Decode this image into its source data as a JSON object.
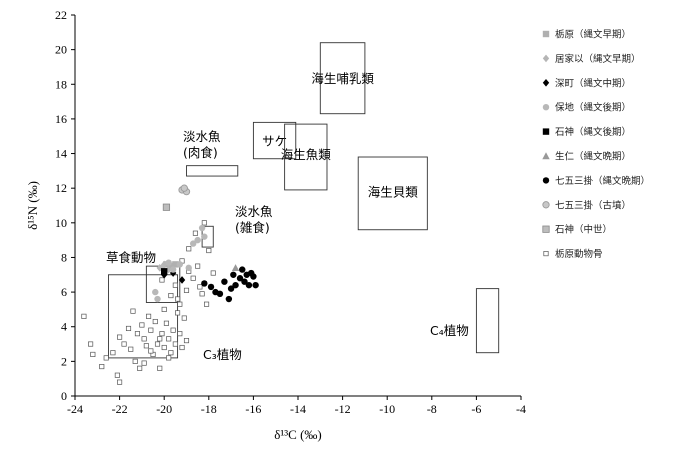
{
  "chart_data": {
    "type": "scatter",
    "xlabel": "δ¹³C (‰)",
    "ylabel": "δ¹⁵N (‰)",
    "xlim": [
      -24,
      -4
    ],
    "ylim": [
      0,
      22
    ],
    "xticks": [
      -24,
      -22,
      -20,
      -18,
      -16,
      -14,
      -12,
      -10,
      -8,
      -6,
      -4
    ],
    "yticks": [
      0,
      2,
      4,
      6,
      8,
      10,
      12,
      14,
      16,
      18,
      20,
      22
    ],
    "grid": false,
    "legend_position": "right",
    "regions": [
      {
        "label": "海生哺乳類",
        "x0": -13.0,
        "x1": -11.0,
        "y0": 16.3,
        "y1": 20.4
      },
      {
        "label": "サケ",
        "x0": -16.0,
        "x1": -14.1,
        "y0": 13.7,
        "y1": 15.8
      },
      {
        "label": "海生魚類",
        "x0": -14.6,
        "x1": -12.7,
        "y0": 11.9,
        "y1": 15.7
      },
      {
        "label": "海生貝類",
        "x0": -11.3,
        "x1": -8.2,
        "y0": 9.6,
        "y1": 13.8
      },
      {
        "label": "淡水魚\n(肉食)",
        "x0": -19.0,
        "x1": -16.7,
        "y0": 12.7,
        "y1": 13.3
      },
      {
        "label": "淡水魚\n(雑食)",
        "x0": -18.3,
        "x1": -17.8,
        "y0": 8.6,
        "y1": 9.8
      },
      {
        "label": "草食動物",
        "x0": -20.8,
        "x1": -19.3,
        "y0": 5.4,
        "y1": 7.5
      },
      {
        "label": "C₃植物",
        "x0": -22.5,
        "x1": -19.4,
        "y0": 2.2,
        "y1": 7.0
      },
      {
        "label": "C₄植物",
        "x0": -6.0,
        "x1": -5.0,
        "y0": 2.5,
        "y1": 6.2
      }
    ],
    "series": [
      {
        "name": "栃原（縄文早期）",
        "marker": "square",
        "color": "#b0b0b0",
        "points": [
          [
            -19.9,
            7.6
          ],
          [
            -19.7,
            7.5
          ],
          [
            -19.5,
            7.6
          ]
        ]
      },
      {
        "name": "居家以（縄文早期）",
        "marker": "diamond",
        "color": "#b5b5b5",
        "points": [
          [
            -20.2,
            7.4
          ],
          [
            -20.0,
            7.6
          ],
          [
            -19.8,
            7.3
          ]
        ]
      },
      {
        "name": "深町（縄文中期）",
        "marker": "diamond",
        "color": "#000000",
        "points": [
          [
            -20.0,
            7.0
          ],
          [
            -19.6,
            7.1
          ],
          [
            -19.2,
            6.7
          ]
        ]
      },
      {
        "name": "保地（縄文後期）",
        "marker": "circle",
        "color": "#b8b8b8",
        "points": [
          [
            -20.4,
            6.0
          ],
          [
            -20.3,
            5.6
          ],
          [
            -20.1,
            7.4
          ],
          [
            -20.0,
            7.2
          ],
          [
            -19.8,
            7.7
          ],
          [
            -19.6,
            7.3
          ],
          [
            -19.3,
            7.6
          ],
          [
            -18.9,
            7.4
          ],
          [
            -18.7,
            8.8
          ],
          [
            -18.5,
            9.0
          ],
          [
            -18.3,
            9.7
          ],
          [
            -18.2,
            9.2
          ]
        ]
      },
      {
        "name": "石神（縄文後期）",
        "marker": "square",
        "color": "#000000",
        "points": [
          [
            -20.0,
            7.2
          ]
        ]
      },
      {
        "name": "生仁（縄文晩期）",
        "marker": "triangle",
        "color": "#999999",
        "points": [
          [
            -16.8,
            7.4
          ]
        ]
      },
      {
        "name": "七五三掛（縄文晩期）",
        "marker": "circle",
        "color": "#000000",
        "points": [
          [
            -18.2,
            6.5
          ],
          [
            -17.9,
            6.3
          ],
          [
            -17.7,
            6.0
          ],
          [
            -17.5,
            5.9
          ],
          [
            -17.3,
            6.6
          ],
          [
            -17.1,
            5.6
          ],
          [
            -17.0,
            6.2
          ],
          [
            -16.9,
            7.0
          ],
          [
            -16.8,
            6.4
          ],
          [
            -16.6,
            6.8
          ],
          [
            -16.5,
            7.3
          ],
          [
            -16.4,
            6.6
          ],
          [
            -16.2,
            6.4
          ],
          [
            -16.0,
            6.9
          ],
          [
            -15.9,
            6.4
          ],
          [
            -16.3,
            7.0
          ],
          [
            -16.1,
            7.1
          ]
        ]
      },
      {
        "name": "七五三掛（古墳）",
        "marker": "circle-outline",
        "color": "#9a9a9a",
        "points": [
          [
            -19.2,
            11.9
          ],
          [
            -19.0,
            11.8
          ],
          [
            -19.1,
            12.0
          ]
        ]
      },
      {
        "name": "石神（中世）",
        "marker": "square-outline",
        "color": "#888888",
        "points": [
          [
            -19.9,
            10.9
          ]
        ]
      },
      {
        "name": "栃原動物骨",
        "marker": "open-square",
        "color": "#555555",
        "points": [
          [
            -23.6,
            4.6
          ],
          [
            -23.3,
            3.0
          ],
          [
            -23.2,
            2.4
          ],
          [
            -22.8,
            1.7
          ],
          [
            -22.6,
            2.2
          ],
          [
            -22.3,
            2.5
          ],
          [
            -22.1,
            1.2
          ],
          [
            -22.0,
            0.8
          ],
          [
            -22.0,
            3.4
          ],
          [
            -21.8,
            3.0
          ],
          [
            -21.5,
            2.7
          ],
          [
            -21.3,
            2.0
          ],
          [
            -21.2,
            3.6
          ],
          [
            -21.1,
            1.6
          ],
          [
            -21.0,
            4.1
          ],
          [
            -20.9,
            3.3
          ],
          [
            -20.8,
            2.9
          ],
          [
            -20.7,
            4.6
          ],
          [
            -20.6,
            3.8
          ],
          [
            -20.5,
            2.4
          ],
          [
            -20.4,
            4.3
          ],
          [
            -20.3,
            3.0
          ],
          [
            -20.2,
            1.6
          ],
          [
            -20.1,
            3.6
          ],
          [
            -20.0,
            2.8
          ],
          [
            -19.9,
            4.2
          ],
          [
            -19.8,
            3.3
          ],
          [
            -19.7,
            2.5
          ],
          [
            -19.6,
            3.8
          ],
          [
            -19.5,
            3.0
          ],
          [
            -19.4,
            4.8
          ],
          [
            -19.3,
            3.6
          ],
          [
            -19.2,
            2.8
          ],
          [
            -19.1,
            4.5
          ],
          [
            -19.0,
            3.2
          ],
          [
            -21.6,
            3.9
          ],
          [
            -21.4,
            4.9
          ],
          [
            -20.9,
            1.9
          ],
          [
            -20.6,
            2.6
          ],
          [
            -20.2,
            3.3
          ],
          [
            -19.8,
            2.2
          ],
          [
            -19.3,
            5.3
          ],
          [
            -19.0,
            6.1
          ],
          [
            -18.9,
            7.2
          ],
          [
            -18.7,
            6.8
          ],
          [
            -18.5,
            7.5
          ],
          [
            -18.4,
            6.3
          ],
          [
            -18.3,
            5.9
          ],
          [
            -18.2,
            10.0
          ],
          [
            -18.0,
            8.4
          ],
          [
            -17.8,
            7.1
          ],
          [
            -18.1,
            5.3
          ],
          [
            -19.5,
            6.4
          ],
          [
            -19.7,
            5.8
          ],
          [
            -20.1,
            6.7
          ],
          [
            -19.2,
            7.8
          ],
          [
            -18.9,
            8.5
          ],
          [
            -18.6,
            9.4
          ],
          [
            -20.0,
            5.0
          ],
          [
            -19.4,
            5.6
          ]
        ]
      }
    ]
  }
}
